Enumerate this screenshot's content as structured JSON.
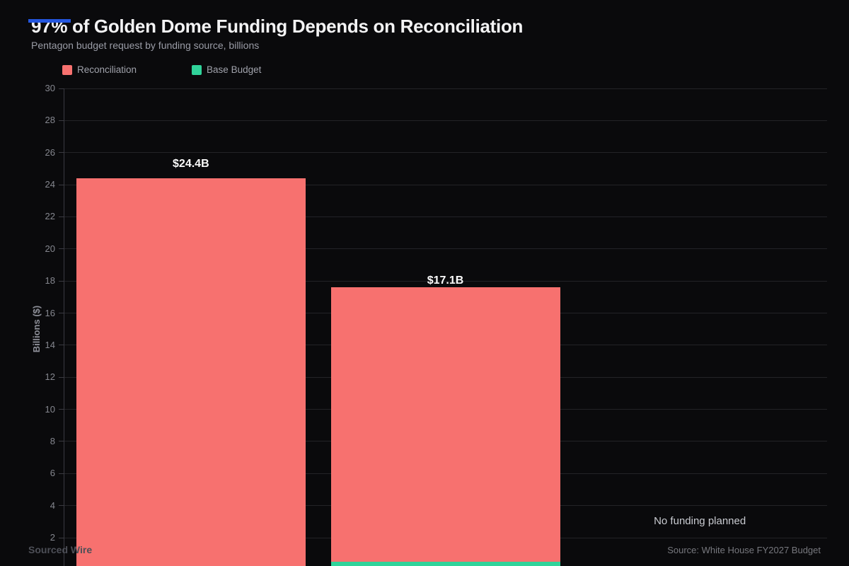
{
  "header": {
    "title": "97% of Golden Dome Funding Depends on Reconciliation",
    "subtitle": "Pentagon budget request by funding source, billions"
  },
  "footer": {
    "credit": "Sourced Wire",
    "source": "Source: White House FY2027 Budget"
  },
  "colors": {
    "background": "#0a0a0c",
    "accent_blue": "#2457e0",
    "reconciliation": "#f7716f",
    "base_budget": "#30d39a",
    "gridline": "#232327",
    "axis": "#3a3a41",
    "title_text": "#f3f3f4",
    "subtitle_text": "#9a9ca6",
    "tick_text": "#85878f",
    "bar_label_text": "#fafafa",
    "annotation_text": "#c9cbd1",
    "source_text": "#77787e",
    "credit_text": "#4d4f57"
  },
  "chart_data": {
    "type": "bar",
    "stacked": true,
    "title": "97% of Golden Dome Funding Depends on Reconciliation",
    "subtitle": "Pentagon budget request by funding source, billions",
    "xlabel": "",
    "ylabel": "Billions ($)",
    "ylim": [
      0,
      30
    ],
    "yticks": [
      2,
      4,
      6,
      8,
      10,
      12,
      14,
      16,
      18,
      20,
      22,
      24,
      26,
      28,
      30
    ],
    "grid": true,
    "legend_position": "top-left",
    "categories": [
      "",
      "",
      ""
    ],
    "series": [
      {
        "name": "Reconciliation",
        "color": "#f7716f",
        "values": [
          24.4,
          17.1,
          0
        ]
      },
      {
        "name": "Base Budget",
        "color": "#30d39a",
        "values": [
          0,
          0.5,
          0
        ]
      }
    ],
    "bar_labels": [
      "$24.4B",
      "$17.1B",
      null
    ],
    "annotations": [
      {
        "text": "No funding planned",
        "category_index": 2,
        "y_value": 3
      }
    ]
  }
}
